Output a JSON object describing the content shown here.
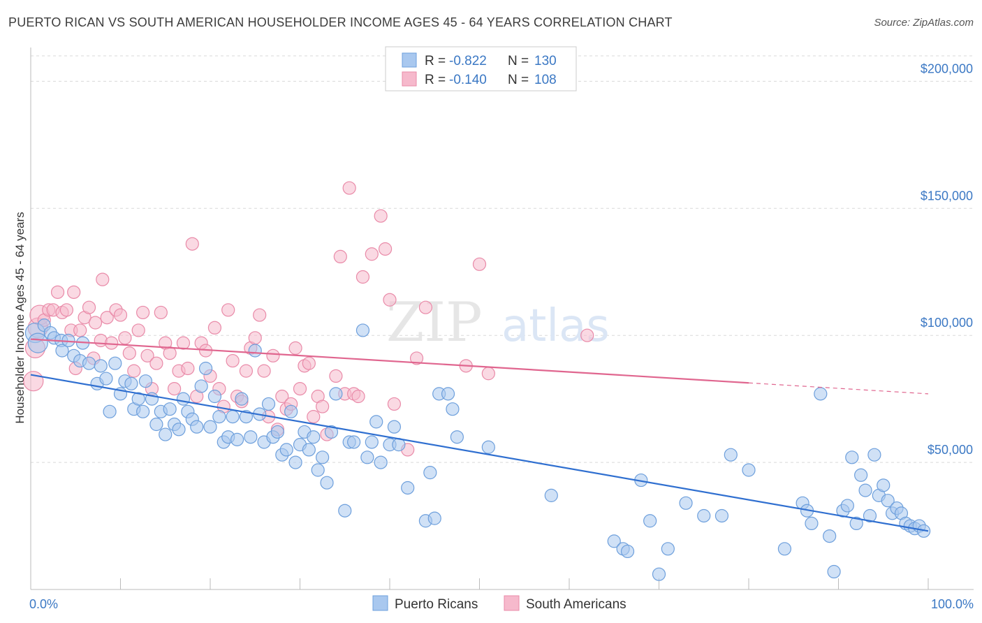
{
  "header": {
    "title": "PUERTO RICAN VS SOUTH AMERICAN HOUSEHOLDER INCOME AGES 45 - 64 YEARS CORRELATION CHART",
    "source": "Source: ZipAtlas.com"
  },
  "watermark": {
    "zip": "ZIP",
    "atlas": "atlas"
  },
  "stats_legend": [
    {
      "r_label": "R =",
      "r_value": "-0.822",
      "n_label": "N =",
      "n_value": "130"
    },
    {
      "r_label": "R =",
      "r_value": "-0.140",
      "n_label": "N =",
      "n_value": "108"
    }
  ],
  "colors": {
    "blue_fill": "#a9c8ef",
    "blue_stroke": "#6d9fdc",
    "blue_line": "#2f6fd0",
    "pink_fill": "#f6b9cc",
    "pink_stroke": "#e98aa8",
    "pink_line": "#e0668f",
    "value_text": "#3b78c4",
    "grid": "#d9d9d9"
  },
  "chart_data": {
    "type": "scatter",
    "xlabel": "",
    "ylabel": "Householder Income Ages 45 - 64 years",
    "xlim": [
      0,
      100
    ],
    "ylim": [
      0,
      210000
    ],
    "x_tick_labels": [
      "0.0%",
      "100.0%"
    ],
    "y_ticks": [
      {
        "value": 50000,
        "label": "$50,000"
      },
      {
        "value": 100000,
        "label": "$100,000"
      },
      {
        "value": 150000,
        "label": "$150,000"
      },
      {
        "value": 200000,
        "label": "$200,000"
      }
    ],
    "grid": true,
    "legend_position": "bottom-center",
    "series": [
      {
        "name": "Puerto Ricans",
        "color": "#a9c8ef",
        "trend": {
          "x": [
            0,
            100
          ],
          "y": [
            84500,
            23000
          ],
          "dashed_from": null
        },
        "points": [
          [
            0.5,
            101000
          ],
          [
            0.8,
            97000
          ],
          [
            1.5,
            104000
          ],
          [
            2.2,
            101000
          ],
          [
            2.6,
            99000
          ],
          [
            3.4,
            98000
          ],
          [
            3.5,
            94000
          ],
          [
            4.2,
            98000
          ],
          [
            4.8,
            92000
          ],
          [
            5.5,
            90000
          ],
          [
            5.8,
            97000
          ],
          [
            6.5,
            89000
          ],
          [
            7.4,
            81000
          ],
          [
            7.8,
            88000
          ],
          [
            8.4,
            83000
          ],
          [
            8.8,
            70000
          ],
          [
            9.4,
            89000
          ],
          [
            10,
            77000
          ],
          [
            10.5,
            82000
          ],
          [
            11.2,
            81000
          ],
          [
            11.5,
            71000
          ],
          [
            12,
            75000
          ],
          [
            12.5,
            70000
          ],
          [
            12.8,
            82000
          ],
          [
            13.5,
            75000
          ],
          [
            14,
            65000
          ],
          [
            14.5,
            70000
          ],
          [
            15,
            61000
          ],
          [
            15.5,
            71000
          ],
          [
            16,
            65000
          ],
          [
            16.5,
            63000
          ],
          [
            17,
            75000
          ],
          [
            17.5,
            70000
          ],
          [
            18,
            67000
          ],
          [
            18.5,
            64000
          ],
          [
            19,
            80000
          ],
          [
            19.5,
            87000
          ],
          [
            20,
            64000
          ],
          [
            20.5,
            76000
          ],
          [
            21,
            68000
          ],
          [
            21.5,
            58000
          ],
          [
            22,
            60000
          ],
          [
            22.5,
            68000
          ],
          [
            23,
            59000
          ],
          [
            23.5,
            75000
          ],
          [
            24,
            68000
          ],
          [
            24.5,
            60000
          ],
          [
            25,
            94000
          ],
          [
            25.5,
            69000
          ],
          [
            26,
            58000
          ],
          [
            26.5,
            73000
          ],
          [
            27,
            60000
          ],
          [
            27.5,
            62000
          ],
          [
            28,
            53000
          ],
          [
            28.5,
            55000
          ],
          [
            29,
            70000
          ],
          [
            29.5,
            50000
          ],
          [
            30,
            57000
          ],
          [
            30.5,
            62000
          ],
          [
            31,
            55000
          ],
          [
            31.5,
            60000
          ],
          [
            32,
            47000
          ],
          [
            32.5,
            52000
          ],
          [
            33,
            42000
          ],
          [
            33.5,
            62000
          ],
          [
            34,
            77000
          ],
          [
            35,
            31000
          ],
          [
            35.5,
            58000
          ],
          [
            36,
            58000
          ],
          [
            37,
            102000
          ],
          [
            37.5,
            52000
          ],
          [
            38,
            58000
          ],
          [
            38.5,
            66000
          ],
          [
            39,
            50000
          ],
          [
            40,
            57000
          ],
          [
            40.5,
            64000
          ],
          [
            41,
            57000
          ],
          [
            42,
            40000
          ],
          [
            44,
            27000
          ],
          [
            44.5,
            46000
          ],
          [
            45,
            28000
          ],
          [
            45.5,
            77000
          ],
          [
            46.5,
            77000
          ],
          [
            47,
            71000
          ],
          [
            47.5,
            60000
          ],
          [
            51,
            56000
          ],
          [
            58,
            37000
          ],
          [
            65,
            19000
          ],
          [
            66,
            16000
          ],
          [
            66.5,
            15000
          ],
          [
            68,
            43000
          ],
          [
            69,
            27000
          ],
          [
            70,
            6000
          ],
          [
            71,
            16000
          ],
          [
            73,
            34000
          ],
          [
            75,
            29000
          ],
          [
            77,
            29000
          ],
          [
            78,
            53000
          ],
          [
            80,
            47000
          ],
          [
            84,
            16000
          ],
          [
            86,
            34000
          ],
          [
            86.5,
            31000
          ],
          [
            87,
            26000
          ],
          [
            88,
            77000
          ],
          [
            89,
            21000
          ],
          [
            89.5,
            7000
          ],
          [
            90.5,
            31000
          ],
          [
            91,
            33000
          ],
          [
            91.5,
            52000
          ],
          [
            92,
            26000
          ],
          [
            92.5,
            45000
          ],
          [
            93,
            39000
          ],
          [
            93.5,
            29000
          ],
          [
            94,
            53000
          ],
          [
            94.5,
            37000
          ],
          [
            95,
            41000
          ],
          [
            95.5,
            35000
          ],
          [
            96,
            30000
          ],
          [
            96.5,
            32000
          ],
          [
            97,
            30000
          ],
          [
            97.5,
            26000
          ],
          [
            98,
            25000
          ],
          [
            98.5,
            24000
          ],
          [
            99,
            25000
          ],
          [
            99.5,
            23000
          ]
        ]
      },
      {
        "name": "South Americans",
        "color": "#f6b9cc",
        "trend": {
          "x": [
            0,
            100
          ],
          "y": [
            98500,
            77000
          ],
          "dashed_from": 80
        },
        "points": [
          [
            0.3,
            82000
          ],
          [
            0.5,
            95000
          ],
          [
            0.8,
            103000
          ],
          [
            1,
            108000
          ],
          [
            1.5,
            106000
          ],
          [
            2,
            110000
          ],
          [
            2.5,
            110000
          ],
          [
            3,
            117000
          ],
          [
            3.5,
            109000
          ],
          [
            4,
            110000
          ],
          [
            4.5,
            102000
          ],
          [
            4.8,
            117000
          ],
          [
            5,
            87000
          ],
          [
            5.5,
            102000
          ],
          [
            6,
            107000
          ],
          [
            6.5,
            111000
          ],
          [
            7,
            91000
          ],
          [
            7.2,
            105000
          ],
          [
            7.8,
            98000
          ],
          [
            8,
            122000
          ],
          [
            8.5,
            107000
          ],
          [
            9,
            97000
          ],
          [
            9.5,
            110000
          ],
          [
            10,
            108000
          ],
          [
            10.5,
            99000
          ],
          [
            11,
            93000
          ],
          [
            11.5,
            86000
          ],
          [
            12,
            102000
          ],
          [
            12.5,
            109000
          ],
          [
            13,
            92000
          ],
          [
            13.5,
            79000
          ],
          [
            14,
            89000
          ],
          [
            14.5,
            109000
          ],
          [
            15,
            97000
          ],
          [
            15.5,
            93000
          ],
          [
            16,
            79000
          ],
          [
            16.5,
            86000
          ],
          [
            17,
            97000
          ],
          [
            17.5,
            87000
          ],
          [
            18,
            136000
          ],
          [
            18.5,
            76000
          ],
          [
            19,
            97000
          ],
          [
            19.5,
            94000
          ],
          [
            20,
            84000
          ],
          [
            20.5,
            103000
          ],
          [
            21,
            79000
          ],
          [
            21.5,
            72000
          ],
          [
            22,
            110000
          ],
          [
            22.5,
            90000
          ],
          [
            23,
            76000
          ],
          [
            23.5,
            74000
          ],
          [
            24,
            86000
          ],
          [
            24.5,
            95000
          ],
          [
            25,
            99000
          ],
          [
            25.5,
            108000
          ],
          [
            26,
            86000
          ],
          [
            26.5,
            68000
          ],
          [
            27,
            92000
          ],
          [
            27.5,
            63000
          ],
          [
            28,
            76000
          ],
          [
            28.5,
            71000
          ],
          [
            29,
            73000
          ],
          [
            29.5,
            95000
          ],
          [
            30,
            79000
          ],
          [
            30.5,
            88000
          ],
          [
            31,
            89000
          ],
          [
            31.5,
            68000
          ],
          [
            32,
            76000
          ],
          [
            32.5,
            72000
          ],
          [
            33,
            61000
          ],
          [
            34,
            84000
          ],
          [
            34.5,
            131000
          ],
          [
            35,
            77000
          ],
          [
            35.5,
            158000
          ],
          [
            36,
            77000
          ],
          [
            36.5,
            76000
          ],
          [
            37,
            123000
          ],
          [
            38,
            132000
          ],
          [
            39,
            147000
          ],
          [
            39.5,
            134000
          ],
          [
            40,
            114000
          ],
          [
            40.5,
            73000
          ],
          [
            42,
            55000
          ],
          [
            43,
            91000
          ],
          [
            44,
            111000
          ],
          [
            50,
            128000
          ],
          [
            51,
            85000
          ],
          [
            62,
            100000
          ],
          [
            48.5,
            88000
          ]
        ]
      }
    ]
  }
}
